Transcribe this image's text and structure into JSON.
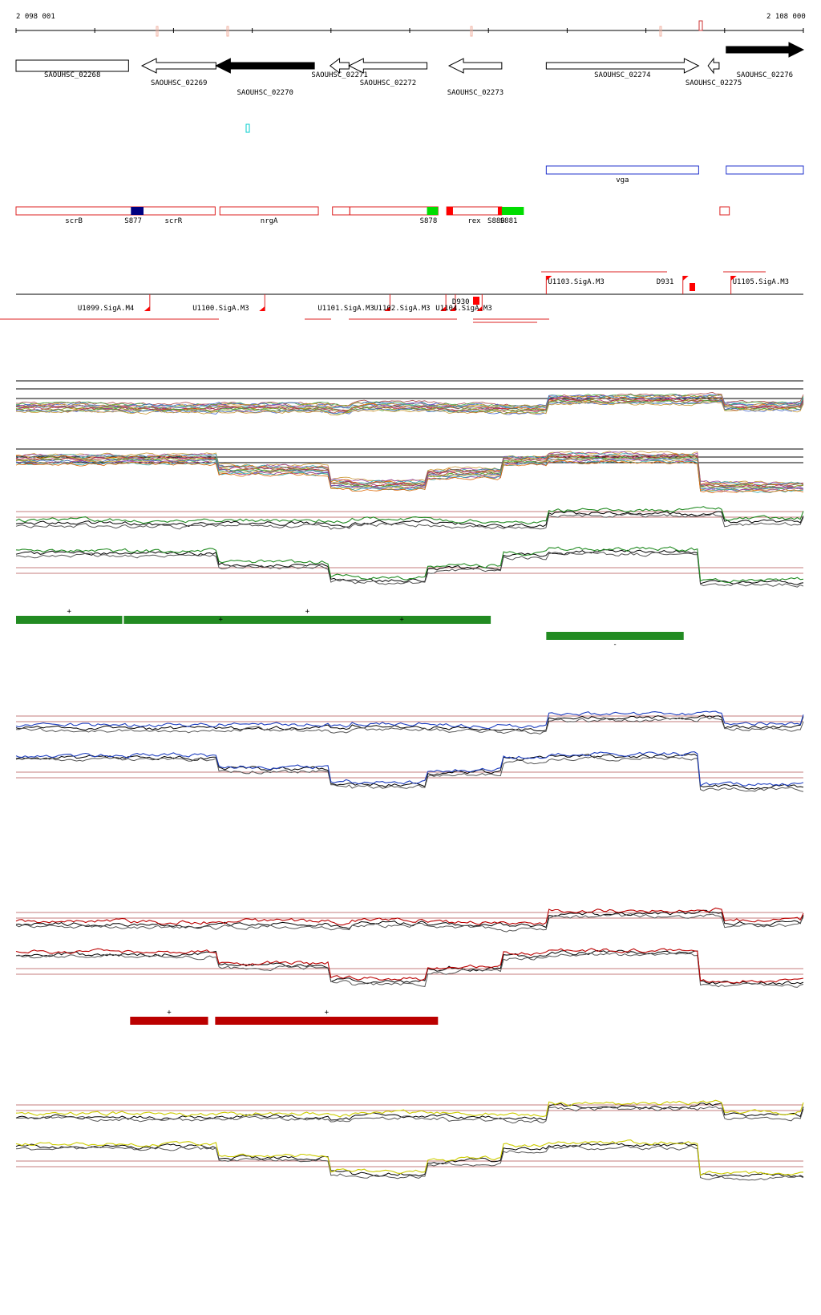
{
  "ruler": {
    "start_label": "2 098 001",
    "end_label": "2 108 000",
    "bp_start": 2098001,
    "bp_end": 2108000
  },
  "genes_track": {
    "genes": [
      {
        "name": "SAOUHSC_02268",
        "start": 2098001,
        "end": 2099430,
        "strand": "+",
        "fill": "#ffffff",
        "label_row": 0
      },
      {
        "name": "SAOUHSC_02269",
        "start": 2099600,
        "end": 2100540,
        "strand": "-",
        "fill": "#ffffff",
        "label_row": 1
      },
      {
        "name": "SAOUHSC_02270",
        "start": 2100540,
        "end": 2101790,
        "strand": "-",
        "fill": "#000000",
        "label_row": 2
      },
      {
        "name": "SAOUHSC_02271",
        "start": 2101990,
        "end": 2102230,
        "strand": "-",
        "fill": "#ffffff",
        "label_row": 0
      },
      {
        "name": "SAOUHSC_02272",
        "start": 2102230,
        "end": 2103220,
        "strand": "-",
        "fill": "#ffffff",
        "label_row": 1
      },
      {
        "name": "SAOUHSC_02273",
        "start": 2103500,
        "end": 2104170,
        "strand": "-",
        "fill": "#ffffff",
        "label_row": 2
      },
      {
        "name": "SAOUHSC_02274",
        "start": 2104735,
        "end": 2106670,
        "strand": "+",
        "fill": "#ffffff",
        "label_row": 0
      },
      {
        "name": "SAOUHSC_02275",
        "start": 2106790,
        "end": 2106930,
        "strand": "-",
        "fill": "#ffffff",
        "label_row": 1
      },
      {
        "name": "SAOUHSC_02276",
        "start": 2107020,
        "end": 2108000,
        "strand": "+",
        "fill": "#000000",
        "label_row": 0
      }
    ]
  },
  "vga_track": {
    "features": [
      {
        "label": "vga",
        "start": 2104735,
        "end": 2106670
      },
      {
        "label": "",
        "start": 2107020,
        "end": 2108000
      }
    ]
  },
  "regulon_track": {
    "boxes": [
      {
        "label": "scrB",
        "start": 2098001,
        "end": 2099470
      },
      {
        "label": "scrR",
        "start": 2099470,
        "end": 2100530
      },
      {
        "label": "nrgA",
        "start": 2100590,
        "end": 2101840
      },
      {
        "label": "",
        "start": 2102020,
        "end": 2102240
      },
      {
        "label": "",
        "start": 2102240,
        "end": 2103360
      },
      {
        "label": "rex",
        "start": 2103470,
        "end": 2104170
      },
      {
        "label": "",
        "start": 2106940,
        "end": 2107060
      }
    ],
    "markers": [
      {
        "label": "S877",
        "start": 2099460,
        "end": 2099620,
        "color": "#000080"
      },
      {
        "label": "S878",
        "start": 2103220,
        "end": 2103360,
        "color": "#00dd00"
      },
      {
        "label": "",
        "start": 2103470,
        "end": 2103550,
        "color": "#ff0000"
      },
      {
        "label": "S880",
        "start": 2104120,
        "end": 2104180,
        "color": "#ff0000"
      },
      {
        "label": "S881",
        "start": 2104170,
        "end": 2104450,
        "color": "#00dd00"
      }
    ]
  },
  "promoter_track": {
    "top_labels": [
      {
        "label": "U1103.SigA.M3",
        "bp": 2104735
      },
      {
        "label": "D931",
        "bp": 2106470
      },
      {
        "label": "U1105.SigA.M3",
        "bp": 2107080
      }
    ],
    "bottom_labels": [
      {
        "label": "U1099.SigA.M4",
        "bp": 2099700
      },
      {
        "label": "U1100.SigA.M3",
        "bp": 2101160
      },
      {
        "label": "U1101.SigA.M3",
        "bp": 2102750
      },
      {
        "label": "U1102.SigA.M3",
        "bp": 2103460
      },
      {
        "label": "D930",
        "bp": 2103580
      },
      {
        "label": "U1104.SigA.M3",
        "bp": 2103920
      }
    ]
  },
  "expression_panels": {
    "step_breakpoints_bp": [
      2098001,
      2099400,
      2100540,
      2101990,
      2102250,
      2103220,
      2103500,
      2104180,
      2104735,
      2106670,
      2106990,
      2108000
    ],
    "forward_levels": [
      0.55,
      0.5,
      0.55,
      0.45,
      0.6,
      0.55,
      0.5,
      0.45,
      1.0,
      1.05,
      0.6,
      0.95
    ],
    "reverse_levels": [
      1.0,
      1.0,
      0.65,
      0.2,
      0.15,
      0.5,
      0.55,
      0.95,
      1.05,
      0.1,
      0.1,
      0.1
    ],
    "panels": [
      {
        "id": "multi",
        "color": "multi",
        "segments": [],
        "segment_signs": []
      },
      {
        "id": "green",
        "color": "#228b22",
        "segments": [
          {
            "start": 2098001,
            "end": 2099350,
            "sign": "+"
          },
          {
            "start": 2099370,
            "end": 2104030,
            "sign": "+"
          },
          {
            "start": 2104735,
            "end": 2106480,
            "sign": "-"
          }
        ]
      },
      {
        "id": "blue",
        "color": "#1f3fbf",
        "segments": []
      },
      {
        "id": "red",
        "color": "#bb0000",
        "segments": [
          {
            "start": 2099450,
            "end": 2100440,
            "sign": "+"
          },
          {
            "start": 2100530,
            "end": 2103360,
            "sign": "+"
          }
        ]
      },
      {
        "id": "yellow",
        "color": "#cccc00",
        "segments": []
      }
    ],
    "extra_marks": [
      {
        "panel": "green",
        "bp": 2100600,
        "sign": "+"
      },
      {
        "panel": "green",
        "bp": 2102900,
        "sign": "+"
      }
    ]
  }
}
